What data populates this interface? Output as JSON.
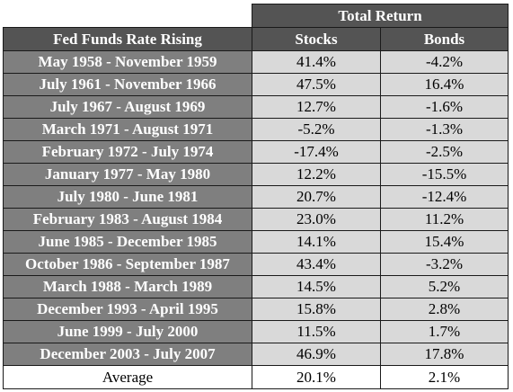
{
  "chart_data": {
    "type": "table",
    "group_header": "Total Return",
    "columns": [
      "Fed Funds Rate Rising",
      "Stocks",
      "Bonds"
    ],
    "rows": [
      {
        "period": "May 1958 - November 1959",
        "stocks": "41.4%",
        "bonds": "-4.2%"
      },
      {
        "period": "July 1961 - November 1966",
        "stocks": "47.5%",
        "bonds": "16.4%"
      },
      {
        "period": "July 1967 - August 1969",
        "stocks": "12.7%",
        "bonds": "-1.6%"
      },
      {
        "period": "March 1971 - August 1971",
        "stocks": "-5.2%",
        "bonds": "-1.3%"
      },
      {
        "period": "February 1972 - July 1974",
        "stocks": "-17.4%",
        "bonds": "-2.5%"
      },
      {
        "period": "January 1977 - May 1980",
        "stocks": "12.2%",
        "bonds": "-15.5%"
      },
      {
        "period": "July 1980 - June 1981",
        "stocks": "20.7%",
        "bonds": "-12.4%"
      },
      {
        "period": "February 1983 - August 1984",
        "stocks": "23.0%",
        "bonds": "11.2%"
      },
      {
        "period": "June 1985 - December 1985",
        "stocks": "14.1%",
        "bonds": "15.4%"
      },
      {
        "period": "October 1986 - September 1987",
        "stocks": "43.4%",
        "bonds": "-3.2%"
      },
      {
        "period": "March 1988 - March 1989",
        "stocks": "14.5%",
        "bonds": "5.2%"
      },
      {
        "period": "December 1993 - April 1995",
        "stocks": "15.8%",
        "bonds": "2.8%"
      },
      {
        "period": "June 1999 - July 2000",
        "stocks": "11.5%",
        "bonds": "1.7%"
      },
      {
        "period": "December 2003 - July 2007",
        "stocks": "46.9%",
        "bonds": "17.8%"
      }
    ],
    "average": {
      "label": "Average",
      "stocks": "20.1%",
      "bonds": "2.1%"
    }
  }
}
